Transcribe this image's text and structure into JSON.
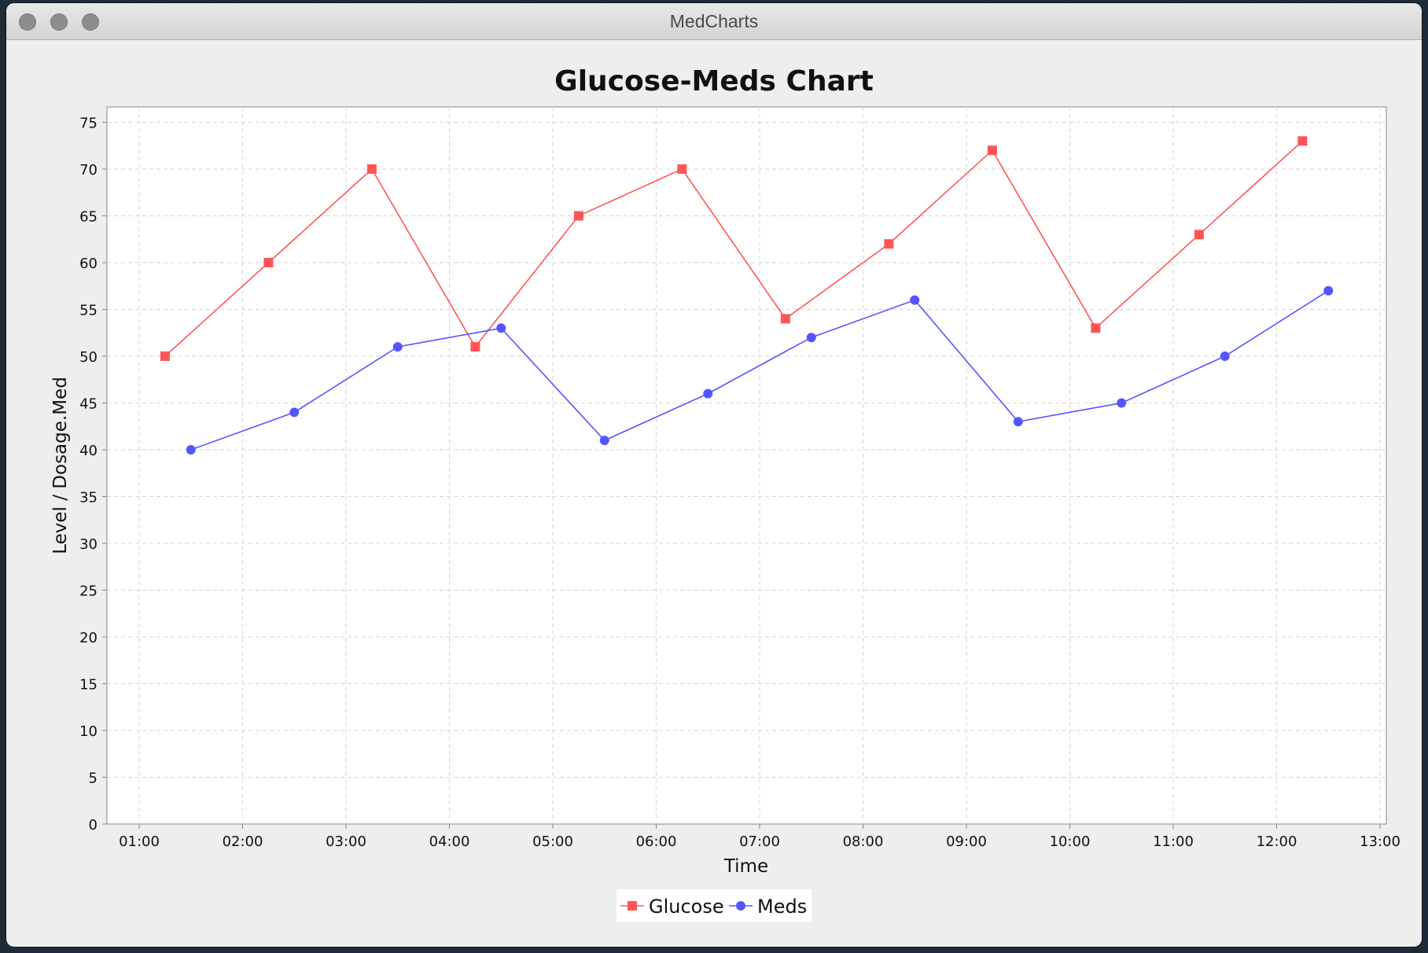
{
  "window": {
    "title": "MedCharts"
  },
  "chart_data": {
    "type": "line",
    "title": "Glucose-Meds Chart",
    "xlabel": "Time",
    "ylabel": "Level / Dosage.Med",
    "ylim": [
      0,
      75
    ],
    "y_ticks": [
      0,
      5,
      10,
      15,
      20,
      25,
      30,
      35,
      40,
      45,
      50,
      55,
      60,
      65,
      70,
      75
    ],
    "x_ticks": [
      "01:00",
      "02:00",
      "03:00",
      "04:00",
      "05:00",
      "06:00",
      "07:00",
      "08:00",
      "09:00",
      "10:00",
      "11:00",
      "12:00",
      "13:00"
    ],
    "grid": true,
    "legend_position": "bottom",
    "series": [
      {
        "name": "Glucose",
        "color": "#ff5555",
        "marker": "square",
        "x": [
          "01:15",
          "02:15",
          "03:15",
          "04:15",
          "05:15",
          "06:15",
          "07:15",
          "08:15",
          "09:15",
          "10:15",
          "11:15",
          "12:15"
        ],
        "values": [
          50,
          60,
          70,
          51,
          65,
          70,
          54,
          62,
          72,
          53,
          63,
          73
        ]
      },
      {
        "name": "Meds",
        "color": "#5555ff",
        "marker": "circle",
        "x": [
          "01:30",
          "02:30",
          "03:30",
          "04:30",
          "05:30",
          "06:30",
          "07:30",
          "08:30",
          "09:30",
          "10:30",
          "11:30",
          "12:30"
        ],
        "values": [
          40,
          44,
          51,
          53,
          41,
          46,
          52,
          56,
          43,
          45,
          50,
          57
        ]
      }
    ]
  }
}
